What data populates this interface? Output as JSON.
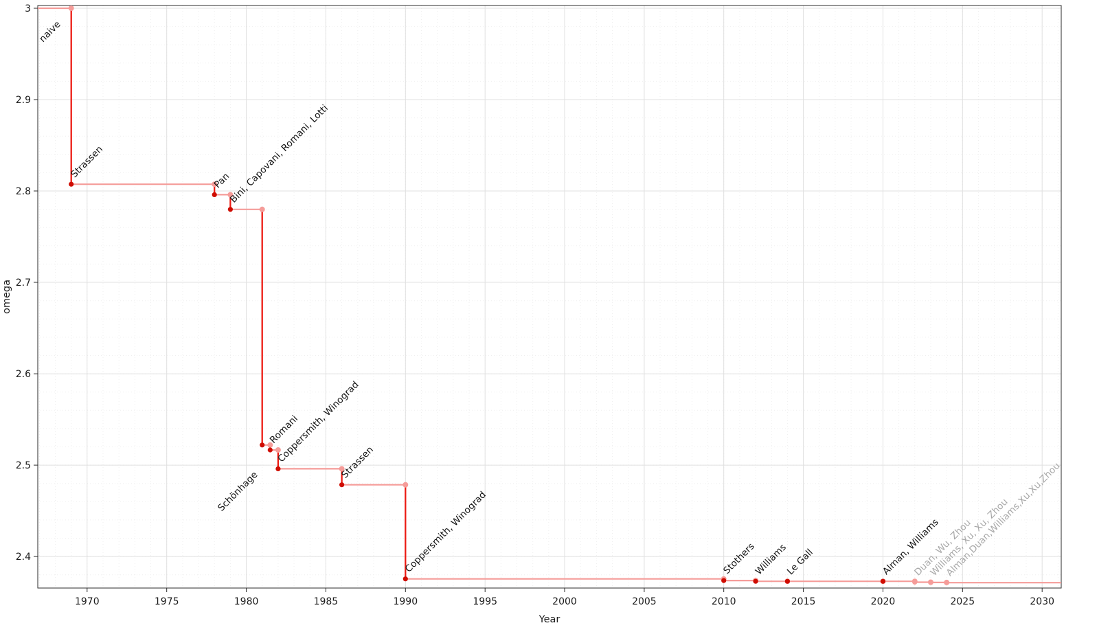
{
  "chart_data": {
    "type": "line",
    "subtype": "step-post",
    "title": "",
    "xlabel": "Year",
    "ylabel": "omega",
    "xlim": [
      1966.9,
      2031.2
    ],
    "ylim": [
      2.3655,
      3.003
    ],
    "x_ticks": [
      1970,
      1975,
      1980,
      1985,
      1990,
      1995,
      2000,
      2005,
      2010,
      2015,
      2020,
      2025,
      2030
    ],
    "y_ticks": [
      2.4,
      2.5,
      2.6,
      2.7,
      2.8,
      2.9,
      3
    ],
    "grid": true,
    "legend": "none",
    "colors": {
      "line": "#f59c99",
      "drop": "#ec1b13",
      "marker": "#cf0d02",
      "recent_marker": "#f59c99",
      "label": "#141414",
      "recent_label": "#a8a8a8",
      "grid": "#e0e0e0",
      "grid_minor": "#efefef",
      "frame": "#2b2b2b"
    },
    "points": [
      {
        "label": "naive",
        "year": 1966.9,
        "omega": 3.0,
        "recent": false
      },
      {
        "label": "Strassen",
        "year": 1969,
        "omega": 2.8074,
        "recent": false
      },
      {
        "label": "Pan",
        "year": 1978,
        "omega": 2.796,
        "recent": false
      },
      {
        "label": "Bini, Capovani, Romani, Lotti",
        "year": 1979,
        "omega": 2.7799,
        "recent": false
      },
      {
        "label": "Schönhage",
        "year": 1981,
        "omega": 2.522,
        "recent": false
      },
      {
        "label": "Romani",
        "year": 1981.5,
        "omega": 2.5166,
        "recent": false
      },
      {
        "label": "Coppersmith, Winograd",
        "year": 1982,
        "omega": 2.496,
        "recent": false
      },
      {
        "label": "Strassen",
        "year": 1986,
        "omega": 2.4785,
        "recent": false
      },
      {
        "label": "Coppersmith, Winograd",
        "year": 1990,
        "omega": 2.3755,
        "recent": false
      },
      {
        "label": "Stothers",
        "year": 2010,
        "omega": 2.3737,
        "recent": false
      },
      {
        "label": "Williams",
        "year": 2012,
        "omega": 2.3729,
        "recent": false
      },
      {
        "label": "Le Gall",
        "year": 2014,
        "omega": 2.3728639,
        "recent": false
      },
      {
        "label": "Alman, Williams",
        "year": 2020,
        "omega": 2.3728596,
        "recent": false
      },
      {
        "label": "Duan, Wu, Zhou",
        "year": 2022,
        "omega": 2.371866,
        "recent": true
      },
      {
        "label": "Williams, Xu, Xu, Zhou",
        "year": 2023,
        "omega": 2.371552,
        "recent": true
      },
      {
        "label": "Alman,Duan,Williams,Xu,Xu,Zhou",
        "year": 2024,
        "omega": 2.371339,
        "recent": true
      }
    ]
  }
}
